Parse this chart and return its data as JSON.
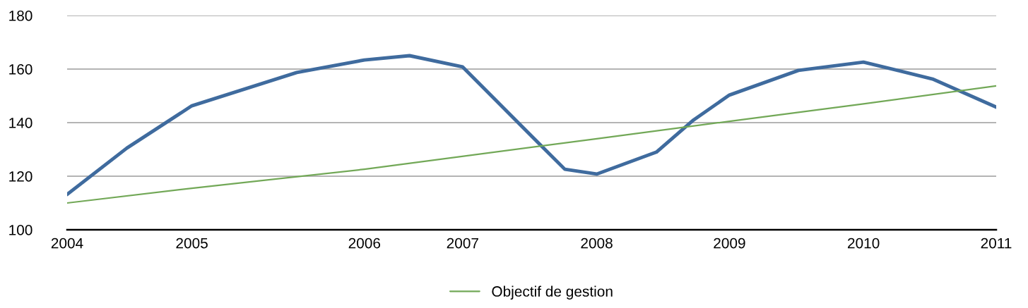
{
  "chart_data": {
    "type": "line",
    "x": [
      2004,
      2004.45,
      2004.94,
      2005.73,
      2006.24,
      2006.58,
      2006.98,
      2007.43,
      2007.75,
      2007.99,
      2008.44,
      2008.72,
      2008.99,
      2009.51,
      2010.0,
      2010.52,
      2011
    ],
    "xlim": [
      2004,
      2011
    ],
    "xticks": [
      2004,
      {
        "value": 2004.94,
        "label": "2005"
      },
      {
        "value": 2006.24,
        "label": "2006"
      },
      {
        "value": 2006.98,
        "label": "2007"
      },
      {
        "value": 2007.99,
        "label": "2008"
      },
      {
        "value": 2008.99,
        "label": "2009"
      },
      {
        "value": 2010.0,
        "label": "2010"
      },
      2011
    ],
    "ylim": [
      100,
      180
    ],
    "yticks": [
      100,
      120,
      140,
      160,
      180
    ],
    "series": [
      {
        "color": "#3f6b9e",
        "values": [
          113.2,
          130.5,
          146.3,
          158.7,
          163.4,
          165,
          160.8,
          138.4,
          122.6,
          120.8,
          129,
          141,
          150.3,
          159.5,
          162.6,
          156.3,
          145.8
        ]
      },
      {
        "name": "Objectif de gestion",
        "color": "#72a857",
        "x": [
          2004,
          2004.94,
          2006.24,
          2007.99,
          2008.99,
          2010.0,
          2011
        ],
        "values": [
          110,
          115.5,
          122.6,
          134,
          140.5,
          147,
          153.7
        ]
      }
    ],
    "grid": "y",
    "legend": "bottom"
  }
}
